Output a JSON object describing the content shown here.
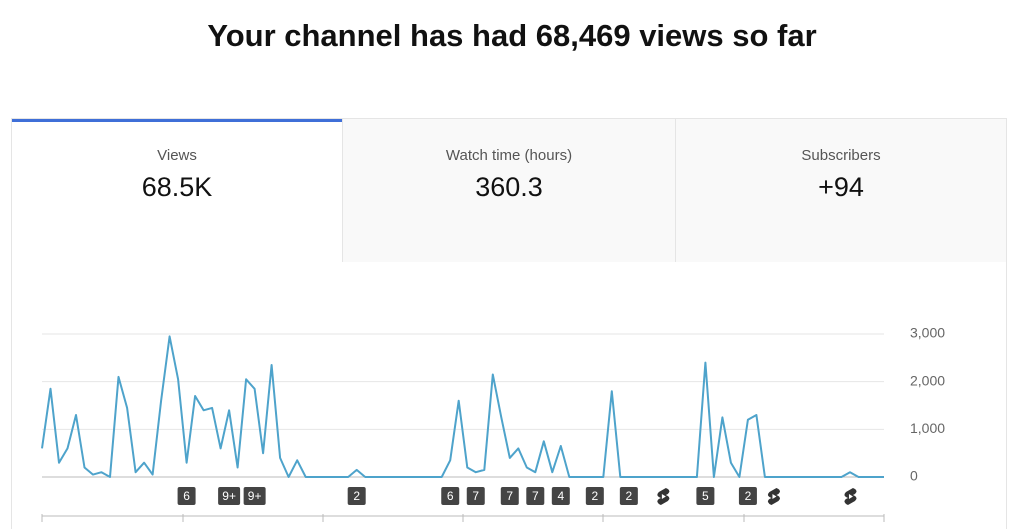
{
  "header": {
    "title": "Your channel has had 68,469 views so far"
  },
  "tabs": [
    {
      "label": "Views",
      "value": "68.5K",
      "selected": true
    },
    {
      "label": "Watch time (hours)",
      "value": "360.3",
      "selected": false
    },
    {
      "label": "Subscribers",
      "value": "+94",
      "selected": false
    }
  ],
  "chart_data": {
    "type": "line",
    "color": "#4ea3cb",
    "values": [
      600,
      1850,
      300,
      600,
      1300,
      200,
      50,
      100,
      0,
      2100,
      1450,
      100,
      300,
      50,
      1600,
      2950,
      2050,
      300,
      1700,
      1400,
      1450,
      600,
      1400,
      200,
      2050,
      1850,
      500,
      2350,
      400,
      0,
      350,
      0,
      0,
      0,
      0,
      0,
      0,
      150,
      0,
      0,
      0,
      0,
      0,
      0,
      0,
      0,
      0,
      0,
      350,
      1600,
      200,
      100,
      150,
      2150,
      1250,
      400,
      600,
      200,
      100,
      750,
      100,
      650,
      0,
      0,
      0,
      0,
      0,
      1800,
      0,
      0,
      0,
      0,
      0,
      0,
      0,
      0,
      0,
      0,
      2400,
      0,
      1250,
      300,
      0,
      1200,
      1300,
      0,
      0,
      0,
      0,
      0,
      0,
      0,
      0,
      0,
      0,
      100,
      0,
      0,
      0,
      0
    ],
    "ylim": [
      0,
      3000
    ],
    "yticks": [
      0,
      {
        "value": 1000,
        "label": "1,000"
      },
      {
        "value": 2000,
        "label": "2,000"
      },
      {
        "value": 3000,
        "label": "3,000"
      }
    ],
    "grid": true,
    "markers": [
      {
        "index": 17,
        "label": "6"
      },
      {
        "index": 22,
        "label": "9+"
      },
      {
        "index": 25,
        "label": "9+"
      },
      {
        "index": 37,
        "label": "2"
      },
      {
        "index": 48,
        "label": "6"
      },
      {
        "index": 51,
        "label": "7"
      },
      {
        "index": 55,
        "label": "7"
      },
      {
        "index": 58,
        "label": "7"
      },
      {
        "index": 61,
        "label": "4"
      },
      {
        "index": 65,
        "label": "2"
      },
      {
        "index": 69,
        "label": "2"
      },
      {
        "index": 73,
        "kind": "short"
      },
      {
        "index": 78,
        "label": "5"
      },
      {
        "index": 83,
        "label": "2"
      },
      {
        "index": 86,
        "kind": "short"
      },
      {
        "index": 95,
        "kind": "short"
      }
    ]
  }
}
